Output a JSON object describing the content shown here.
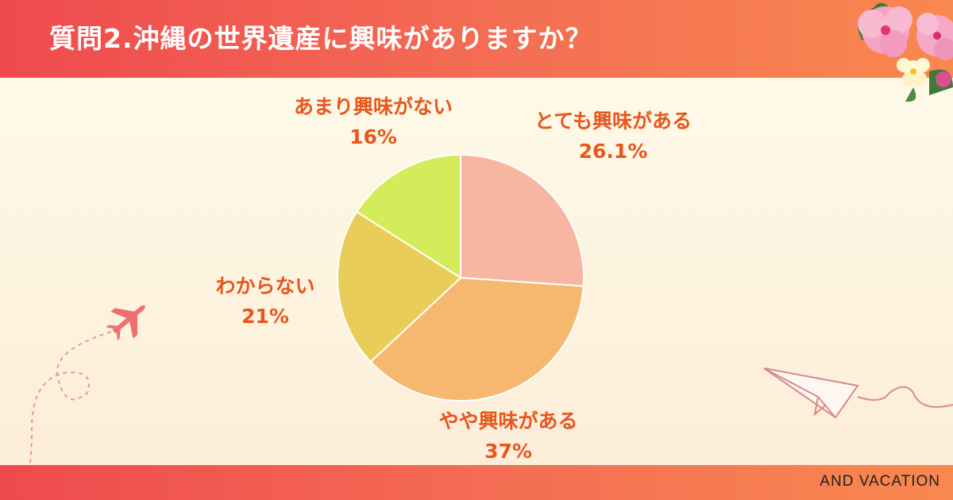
{
  "title": "質問2.沖縄の世界遺産に興味がありますか？",
  "brand": "AND VACATION",
  "chart_data": {
    "type": "pie",
    "title": "質問2.沖縄の世界遺産に興味がありますか？",
    "slices": [
      {
        "label": "とても興味がある",
        "value": 26.1,
        "value_label": "26.1%",
        "color": "#f8b5a2"
      },
      {
        "label": "やや興味がある",
        "value": 37,
        "value_label": "37%",
        "color": "#f6b86e"
      },
      {
        "label": "わからない",
        "value": 21,
        "value_label": "21%",
        "color": "#e8ce58"
      },
      {
        "label": "あまり興味がない",
        "value": 16,
        "value_label": "16%",
        "color": "#d4ec5a"
      }
    ],
    "start_angle": "12 o'clock",
    "direction": "clockwise",
    "label_color": "#e8561c"
  },
  "colors": {
    "header_start": "#ef4a4e",
    "header_end": "#f9884f",
    "background": "#fefbea"
  },
  "decorations": [
    "hibiscus-flower-icon",
    "airplane-icon",
    "paper-plane-icon"
  ]
}
